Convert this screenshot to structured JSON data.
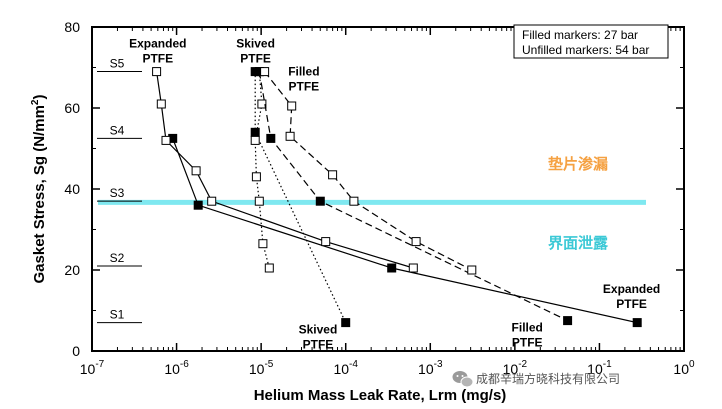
{
  "chart_data": {
    "type": "line",
    "xscale": "log",
    "xlim_exp": [
      -7,
      0
    ],
    "ylim": [
      0,
      80
    ],
    "x_tick_labels": [
      {
        "exp": -7,
        "base": "10",
        "sup": "-7"
      },
      {
        "exp": -6,
        "base": "10",
        "sup": "-6"
      },
      {
        "exp": -5,
        "base": "10",
        "sup": "-5"
      },
      {
        "exp": -4,
        "base": "10",
        "sup": "-4"
      },
      {
        "exp": -3,
        "base": "10",
        "sup": "-3"
      },
      {
        "exp": -2,
        "base": "10",
        "sup": "-2"
      },
      {
        "exp": -1,
        "base": "10",
        "sup": "-1"
      },
      {
        "exp": 0,
        "base": "10",
        "sup": "0"
      }
    ],
    "y_ticks": [
      0,
      20,
      40,
      60,
      80
    ],
    "xlabel": "Helium Mass Leak Rate, Lrm (mg/s)",
    "ylabel_main": "Gasket Stress, Sg (N/mm",
    "ylabel_sup": "2",
    "ylabel_close": ")",
    "legend": {
      "line1": "Filled markers: 27 bar",
      "line2": "Unfilled markers: 54 bar",
      "placement": "top-right"
    },
    "stress_levels": [
      {
        "name": "S5",
        "y": 69
      },
      {
        "name": "S4",
        "y": 52.5
      },
      {
        "name": "S3",
        "y": 37
      },
      {
        "name": "S2",
        "y": 21
      },
      {
        "name": "S1",
        "y": 7
      }
    ],
    "threshold_line": {
      "y": 36.7,
      "color": "#7fe8f0"
    },
    "region_labels": {
      "upper": {
        "text": "垫片渗漏",
        "color": "#f5a142"
      },
      "lower": {
        "text": "界面泄露",
        "color": "#3cc9d6"
      }
    },
    "series": [
      {
        "name": "Expanded PTFE (27 bar)",
        "style": "solid",
        "marker": "filled",
        "x": [
          9e-07,
          1.8e-06,
          0.00035,
          0.28
        ],
        "y": [
          52.5,
          36,
          20.5,
          7
        ]
      },
      {
        "name": "Expanded PTFE (54 bar)",
        "style": "solid",
        "marker": "open",
        "x": [
          5.8e-07,
          6.6e-07,
          7.5e-07,
          1.7e-06,
          2.6e-06,
          5.8e-05,
          0.00063
        ],
        "y": [
          69,
          61,
          52,
          44.5,
          37,
          27,
          20.5
        ]
      },
      {
        "name": "Skived PTFE (27 bar)",
        "style": "dotted",
        "marker": "filled",
        "x": [
          8.5e-06,
          8.5e-06,
          0.0001
        ],
        "y": [
          69,
          54,
          7
        ]
      },
      {
        "name": "Skived PTFE (54 bar)",
        "style": "dotted",
        "marker": "open",
        "x": [
          9.5e-06,
          1.02e-05,
          8.5e-06,
          8.8e-06,
          9.5e-06,
          1.05e-05,
          1.25e-05
        ],
        "y": [
          69,
          61,
          52,
          43,
          37,
          26.5,
          20.5
        ]
      },
      {
        "name": "Filled PTFE (27 bar)",
        "style": "dashed",
        "marker": "filled",
        "x": [
          9.5e-06,
          1.3e-05,
          5e-05,
          0.042
        ],
        "y": [
          69,
          52.5,
          37,
          7.5
        ]
      },
      {
        "name": "Filled PTFE (54 bar)",
        "style": "dashed",
        "marker": "open",
        "x": [
          1.1e-05,
          2.3e-05,
          2.2e-05,
          7e-05,
          0.000125,
          0.00068,
          0.0031
        ],
        "y": [
          69,
          60.5,
          53,
          43.5,
          37,
          27,
          20
        ]
      }
    ],
    "annotations": [
      {
        "id": "expanded-top",
        "lines": [
          "Expanded",
          "PTFE"
        ],
        "x": 6e-07,
        "y": 75
      },
      {
        "id": "skived-top",
        "lines": [
          "Skived",
          "PTFE"
        ],
        "x": 8.6e-06,
        "y": 75
      },
      {
        "id": "filled-top",
        "lines": [
          "Filled",
          "PTFE"
        ],
        "x": 3.2e-05,
        "y": 68
      },
      {
        "id": "skived-bottom",
        "lines": [
          "Skived",
          "PTFE"
        ],
        "x": 4.7e-05,
        "y": 4.3
      },
      {
        "id": "filled-bottom",
        "lines": [
          "Filled",
          "PTFE"
        ],
        "x": 0.014,
        "y": 4.8
      },
      {
        "id": "expanded-bottom",
        "lines": [
          "Expanded",
          "PTFE"
        ],
        "x": 0.24,
        "y": 14.3
      }
    ]
  },
  "watermark": {
    "text": "成都辛瑞方晓科技有限公司",
    "icon": "wechat-icon"
  }
}
